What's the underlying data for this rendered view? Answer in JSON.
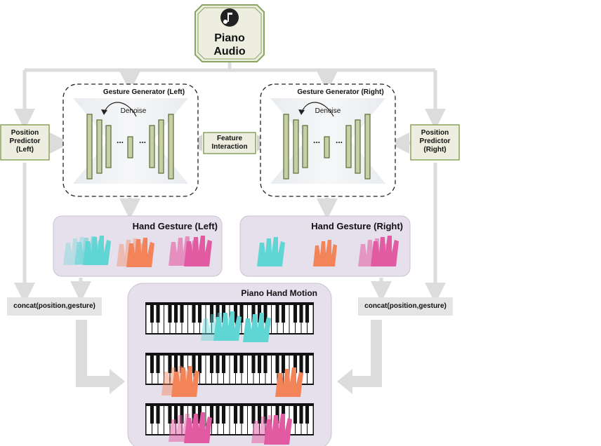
{
  "audio": {
    "label_line1": "Piano",
    "label_line2": "Audio",
    "icon": "music-note-icon"
  },
  "generator_left": {
    "title": "Gesture Generator (Left)",
    "denoise_label": "Denoise",
    "dots": "..."
  },
  "generator_right": {
    "title": "Gesture Generator (Right)",
    "denoise_label": "Denoise",
    "dots": "..."
  },
  "feature_interaction": {
    "line1": "Feature",
    "line2": "Interaction"
  },
  "predictor_left": {
    "line1": "Position",
    "line2": "Predictor",
    "line3": "(Left)"
  },
  "predictor_right": {
    "line1": "Position",
    "line2": "Predictor",
    "line3": "(Right)"
  },
  "gesture_left": {
    "title": "Hand Gesture (Left)"
  },
  "gesture_right": {
    "title": "Hand Gesture (Right)"
  },
  "concat_left": {
    "label": "concat(position,gesture)"
  },
  "concat_right": {
    "label": "concat(position,gesture)"
  },
  "motion": {
    "title": "Piano Hand Motion"
  },
  "colors": {
    "arrow": "#dcdcdc",
    "box_fill": "#eeeee0",
    "box_stroke": "#8aa35f",
    "bar_fill": "#c7cfa6",
    "bar_stroke": "#5b6b3a",
    "panel": "#e6dfec",
    "cyan": "#5fd6d4",
    "orange": "#f3845a",
    "pink": "#e25aa2"
  }
}
